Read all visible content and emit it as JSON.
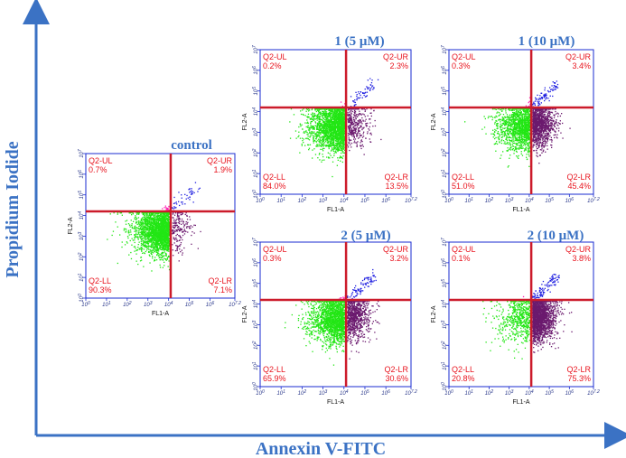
{
  "figure": {
    "x_axis_title": "Annexin V-FITC",
    "y_axis_title": "Propidium Iodide",
    "colors": {
      "accent": "#3b72c4",
      "gate": "#cc1b2b",
      "quadrant_text": "#e8141e",
      "frame": "#1a2bd1"
    }
  },
  "chart_data": [
    {
      "type": "scatter",
      "title": "control",
      "xlabel": "FL1-A",
      "ylabel": "FL2-A",
      "xticks": [
        "10^0",
        "10^1",
        "10^2",
        "10^3",
        "10^4",
        "10^5",
        "10^6",
        "10^7.2"
      ],
      "yticks": [
        "10^0",
        "10^1",
        "10^2",
        "10^3",
        "10^4",
        "10^5",
        "10^6",
        "10^7"
      ],
      "quadrants": {
        "UL": {
          "name": "Q2-UL",
          "percent": "0.7%"
        },
        "UR": {
          "name": "Q2-UR",
          "percent": "1.9%"
        },
        "LL": {
          "name": "Q2-LL",
          "percent": "90.3%"
        },
        "LR": {
          "name": "Q2-LR",
          "percent": "7.1%"
        }
      }
    },
    {
      "type": "scatter",
      "title": "1 (5 μM)",
      "xlabel": "FL1-A",
      "ylabel": "FL2-A",
      "xticks": [
        "10^0",
        "10^1",
        "10^2",
        "10^3",
        "10^4",
        "10^5",
        "10^6",
        "10^7.2"
      ],
      "yticks": [
        "10^0",
        "10^1",
        "10^2",
        "10^3",
        "10^4",
        "10^5",
        "10^6",
        "10^7"
      ],
      "quadrants": {
        "UL": {
          "name": "Q2-UL",
          "percent": "0.2%"
        },
        "UR": {
          "name": "Q2-UR",
          "percent": "2.3%"
        },
        "LL": {
          "name": "Q2-LL",
          "percent": "84.0%"
        },
        "LR": {
          "name": "Q2-LR",
          "percent": "13.5%"
        }
      }
    },
    {
      "type": "scatter",
      "title": "1 (10 μM)",
      "xlabel": "FL1-A",
      "ylabel": "FL2-A",
      "xticks": [
        "10^0",
        "10^1",
        "10^2",
        "10^3",
        "10^4",
        "10^5",
        "10^6",
        "10^7.2"
      ],
      "yticks": [
        "10^0",
        "10^1",
        "10^2",
        "10^3",
        "10^4",
        "10^5",
        "10^6",
        "10^7"
      ],
      "quadrants": {
        "UL": {
          "name": "Q2-UL",
          "percent": "0.3%"
        },
        "UR": {
          "name": "Q2-UR",
          "percent": "3.4%"
        },
        "LL": {
          "name": "Q2-LL",
          "percent": "51.0%"
        },
        "LR": {
          "name": "Q2-LR",
          "percent": "45.4%"
        }
      }
    },
    {
      "type": "scatter",
      "title": "2 (5 μM)",
      "xlabel": "FL1-A",
      "ylabel": "FL2-A",
      "xticks": [
        "10^0",
        "10^1",
        "10^2",
        "10^3",
        "10^4",
        "10^5",
        "10^6",
        "10^7.2"
      ],
      "yticks": [
        "10^0",
        "10^1",
        "10^2",
        "10^3",
        "10^4",
        "10^5",
        "10^6",
        "10^7"
      ],
      "quadrants": {
        "UL": {
          "name": "Q2-UL",
          "percent": "0.3%"
        },
        "UR": {
          "name": "Q2-UR",
          "percent": "3.2%"
        },
        "LL": {
          "name": "Q2-LL",
          "percent": "65.9%"
        },
        "LR": {
          "name": "Q2-LR",
          "percent": "30.6%"
        }
      }
    },
    {
      "type": "scatter",
      "title": "2 (10 μM)",
      "xlabel": "FL1-A",
      "ylabel": "FL2-A",
      "xticks": [
        "10^0",
        "10^1",
        "10^2",
        "10^3",
        "10^4",
        "10^5",
        "10^6",
        "10^7.2"
      ],
      "yticks": [
        "10^0",
        "10^1",
        "10^2",
        "10^3",
        "10^4",
        "10^5",
        "10^6",
        "10^7"
      ],
      "quadrants": {
        "UL": {
          "name": "Q2-UL",
          "percent": "0.1%"
        },
        "UR": {
          "name": "Q2-UR",
          "percent": "3.8%"
        },
        "LL": {
          "name": "Q2-LL",
          "percent": "20.8%"
        },
        "LR": {
          "name": "Q2-LR",
          "percent": "75.3%"
        }
      }
    }
  ]
}
